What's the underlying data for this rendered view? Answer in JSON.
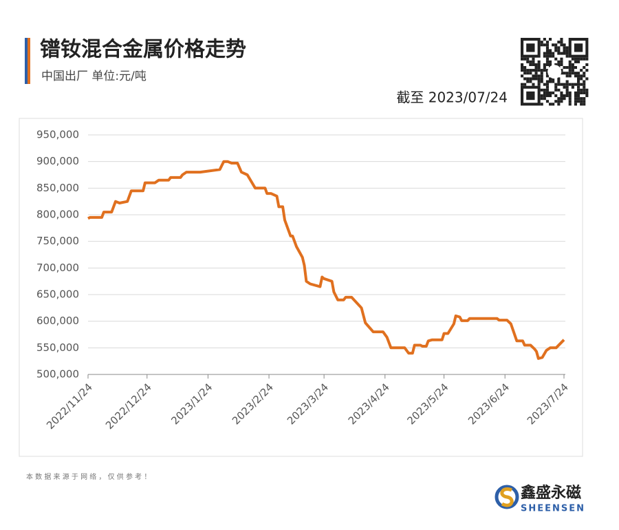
{
  "chart_data": {
    "type": "line",
    "title": "镨钕混合金属价格走势",
    "subtitle": "中国出厂  单位:元/吨",
    "date_note": "截至 2023/07/24",
    "source_note": "本 数 据 来 源 于 网 络 ， 仅 供 参 考 ！",
    "x": [
      "2022/11/24",
      "2022/11/25",
      "2022/12/1",
      "2022/12/2",
      "2022/12/6",
      "2022/12/8",
      "2022/12/10",
      "2022/12/14",
      "2022/12/16",
      "2022/12/22",
      "2022/12/23",
      "2022/12/28",
      "2022/12/30",
      "2023/1/4",
      "2023/1/5",
      "2023/1/10",
      "2023/1/11",
      "2023/1/13",
      "2023/1/20",
      "2023/1/30",
      "2023/2/1",
      "2023/2/3",
      "2023/2/5",
      "2023/2/8",
      "2023/2/10",
      "2023/2/13",
      "2023/2/17",
      "2023/2/22",
      "2023/2/23",
      "2023/2/25",
      "2023/2/28",
      "2023/3/1",
      "2023/3/3",
      "2023/3/4",
      "2023/3/7",
      "2023/3/8",
      "2023/3/10",
      "2023/3/13",
      "2023/3/14",
      "2023/3/15",
      "2023/3/17",
      "2023/3/22",
      "2023/3/23",
      "2023/3/24",
      "2023/3/28",
      "2023/3/29",
      "2023/3/31",
      "2023/4/3",
      "2023/4/4",
      "2023/4/7",
      "2023/4/12",
      "2023/4/14",
      "2023/4/18",
      "2023/4/23",
      "2023/4/25",
      "2023/4/27",
      "2023/5/4",
      "2023/5/6",
      "2023/5/8",
      "2023/5/9",
      "2023/5/12",
      "2023/5/13",
      "2023/5/15",
      "2023/5/16",
      "2023/5/18",
      "2023/5/23",
      "2023/5/24",
      "2023/5/26",
      "2023/5/29",
      "2023/5/30",
      "2023/6/1",
      "2023/6/2",
      "2023/6/5",
      "2023/6/6",
      "2023/6/20",
      "2023/6/21",
      "2023/6/25",
      "2023/6/27",
      "2023/6/30",
      "2023/7/3",
      "2023/7/4",
      "2023/7/7",
      "2023/7/9",
      "2023/7/10",
      "2023/7/11",
      "2023/7/13",
      "2023/7/15",
      "2023/7/17",
      "2023/7/20",
      "2023/7/24"
    ],
    "series": [
      {
        "name": "镨钕混合金属",
        "color": "#e0701f",
        "values": [
          793000,
          795000,
          795000,
          805000,
          805000,
          825000,
          822000,
          825000,
          845000,
          845000,
          860000,
          860000,
          865000,
          865000,
          870000,
          870000,
          875000,
          880000,
          880000,
          885000,
          900000,
          900000,
          897000,
          897000,
          880000,
          875000,
          850000,
          850000,
          840000,
          840000,
          835000,
          815000,
          815000,
          790000,
          760000,
          760000,
          740000,
          720000,
          705000,
          675000,
          670000,
          665000,
          683000,
          680000,
          675000,
          655000,
          640000,
          640000,
          645000,
          645000,
          625000,
          597000,
          580000,
          580000,
          570000,
          550000,
          550000,
          540000,
          540000,
          555000,
          555000,
          553000,
          553000,
          563000,
          565000,
          565000,
          577000,
          577000,
          595000,
          610000,
          608000,
          601000,
          601000,
          605000,
          605000,
          602000,
          602000,
          595000,
          563000,
          563000,
          555000,
          555000,
          548000,
          543000,
          530000,
          532000,
          545000,
          550000,
          550000,
          565000
        ]
      }
    ],
    "xlim": [
      "2022/11/24",
      "2023/7/24"
    ],
    "xticks": [
      "2022/11/24",
      "2022/12/24",
      "2023/1/24",
      "2023/2/24",
      "2023/3/24",
      "2023/4/24",
      "2023/5/24",
      "2023/6/24",
      "2023/7/24"
    ],
    "ylim": [
      500000,
      950000
    ],
    "yticks": [
      {
        "value": 500000,
        "label": "500,000"
      },
      {
        "value": 550000,
        "label": "550,000"
      },
      {
        "value": 600000,
        "label": "600,000"
      },
      {
        "value": 650000,
        "label": "650,000"
      },
      {
        "value": 700000,
        "label": "700,000"
      },
      {
        "value": 750000,
        "label": "750,000"
      },
      {
        "value": 800000,
        "label": "800,000"
      },
      {
        "value": 850000,
        "label": "850,000"
      },
      {
        "value": 900000,
        "label": "900,000"
      },
      {
        "value": 950000,
        "label": "950,000"
      }
    ],
    "grid": true
  },
  "brand": {
    "name": "鑫盛永磁",
    "sub": "SHEENSEN"
  }
}
